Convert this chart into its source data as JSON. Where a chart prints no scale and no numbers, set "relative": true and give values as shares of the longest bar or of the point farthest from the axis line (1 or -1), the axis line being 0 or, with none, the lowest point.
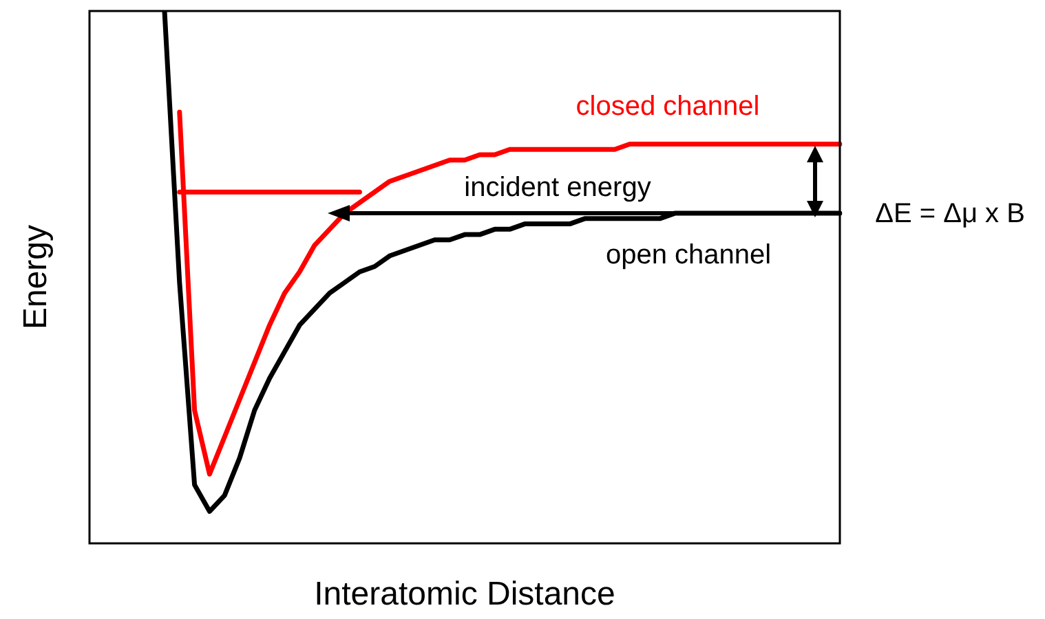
{
  "chart_data": {
    "type": "line",
    "relative": true,
    "xlabel": "Interatomic Distance",
    "ylabel": "Energy",
    "categories": [
      null,
      null,
      null,
      null,
      null,
      null,
      null,
      null,
      null,
      null,
      null,
      null,
      null,
      null,
      null,
      null,
      null,
      null,
      null,
      null,
      null,
      null,
      null,
      null,
      null,
      null,
      null,
      null,
      null,
      null,
      null,
      null,
      null,
      null,
      null,
      null,
      null,
      null,
      null,
      null,
      null,
      null,
      null,
      null,
      null,
      null,
      null,
      null,
      null,
      null,
      null
    ],
    "series": [
      {
        "color": "#000000",
        "values": [
          null,
          null,
          null,
          null,
          null,
          1.0,
          0.49,
          0.11,
          0.06,
          0.09,
          0.16,
          0.25,
          0.31,
          0.36,
          0.41,
          0.44,
          0.47,
          0.49,
          0.51,
          0.52,
          0.54,
          0.55,
          0.56,
          0.57,
          0.57,
          0.58,
          0.58,
          0.59,
          0.59,
          0.6,
          0.6,
          0.6,
          0.6,
          0.61,
          0.61,
          0.61,
          0.61,
          0.61,
          0.61,
          0.62,
          0.62,
          0.62,
          0.62,
          0.62,
          0.62,
          0.62,
          0.62,
          0.62,
          0.62,
          0.62,
          0.62
        ]
      },
      {
        "color": "#ff0000",
        "values": [
          null,
          null,
          null,
          null,
          null,
          null,
          0.81,
          0.25,
          0.13,
          0.2,
          0.27,
          0.34,
          0.41,
          0.47,
          0.51,
          0.56,
          0.59,
          0.62,
          0.64,
          0.66,
          0.68,
          0.69,
          0.7,
          0.71,
          0.72,
          0.72,
          0.73,
          0.73,
          0.74,
          0.74,
          0.74,
          0.74,
          0.74,
          0.74,
          0.74,
          0.74,
          0.75,
          0.75,
          0.75,
          0.75,
          0.75,
          0.75,
          0.75,
          0.75,
          0.75,
          0.75,
          0.75,
          0.75,
          0.75,
          0.75,
          0.75
        ]
      },
      {
        "color": "#ff0000",
        "values": [
          null,
          null,
          null,
          null,
          null,
          null,
          0.66,
          0.66,
          0.66,
          0.66,
          0.66,
          0.66,
          0.66,
          0.66,
          0.66,
          0.66,
          0.66,
          0.66,
          0.66,
          null,
          null,
          null,
          null,
          null,
          null,
          null,
          null,
          null,
          null,
          null,
          null,
          null,
          null,
          null,
          null,
          null,
          null,
          null,
          null,
          null,
          null,
          null,
          null,
          null,
          null,
          null,
          null,
          null,
          null,
          null,
          null
        ]
      }
    ],
    "annotations": [
      "closed channel",
      "incident energy",
      "open channel",
      "ΔE = Δμ x B"
    ],
    "legend": false,
    "grid": false,
    "marker": "none",
    "line_style": "solid"
  }
}
